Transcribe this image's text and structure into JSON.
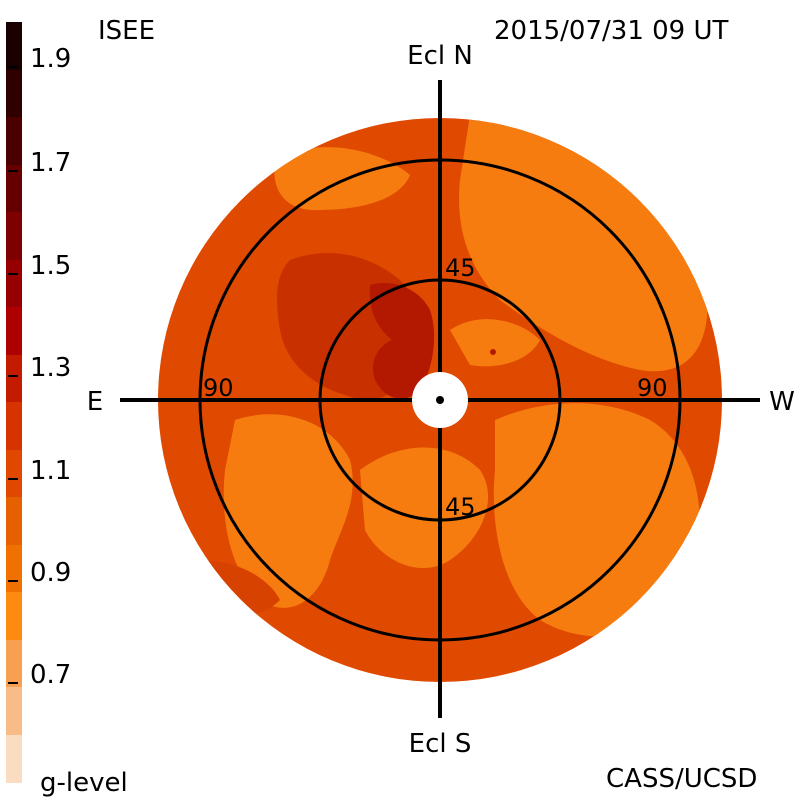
{
  "header": {
    "source_label": "ISEE",
    "timestamp": "2015/07/31 09 UT",
    "credit": "CASS/UCSD"
  },
  "colorbar": {
    "title": "g-level",
    "ticks": [
      "1.9",
      "1.7",
      "1.5",
      "1.3",
      "1.1",
      "0.9",
      "0.7"
    ],
    "colors": [
      "#1a0000",
      "#2e0000",
      "#4a0000",
      "#660000",
      "#7e0000",
      "#960000",
      "#ae0000",
      "#c41a00",
      "#d63300",
      "#e04800",
      "#e66000",
      "#f07000",
      "#ff8a10",
      "#f7a050",
      "#f7bc88",
      "#fadcc0"
    ]
  },
  "map": {
    "direction_labels": {
      "north": "Ecl N",
      "south": "Ecl S",
      "east": "E",
      "west": "W"
    },
    "ring_labels": {
      "inner_top": "45",
      "inner_bottom": "45",
      "outer_left": "90",
      "outer_right": "90"
    },
    "colors": {
      "background": "#e04a00",
      "bright": "#f77c10",
      "mid": "#e35a0a",
      "dark": "#c93000",
      "darker": "#b31800",
      "center_hole": "#ffffff",
      "lines": "#000000"
    }
  }
}
